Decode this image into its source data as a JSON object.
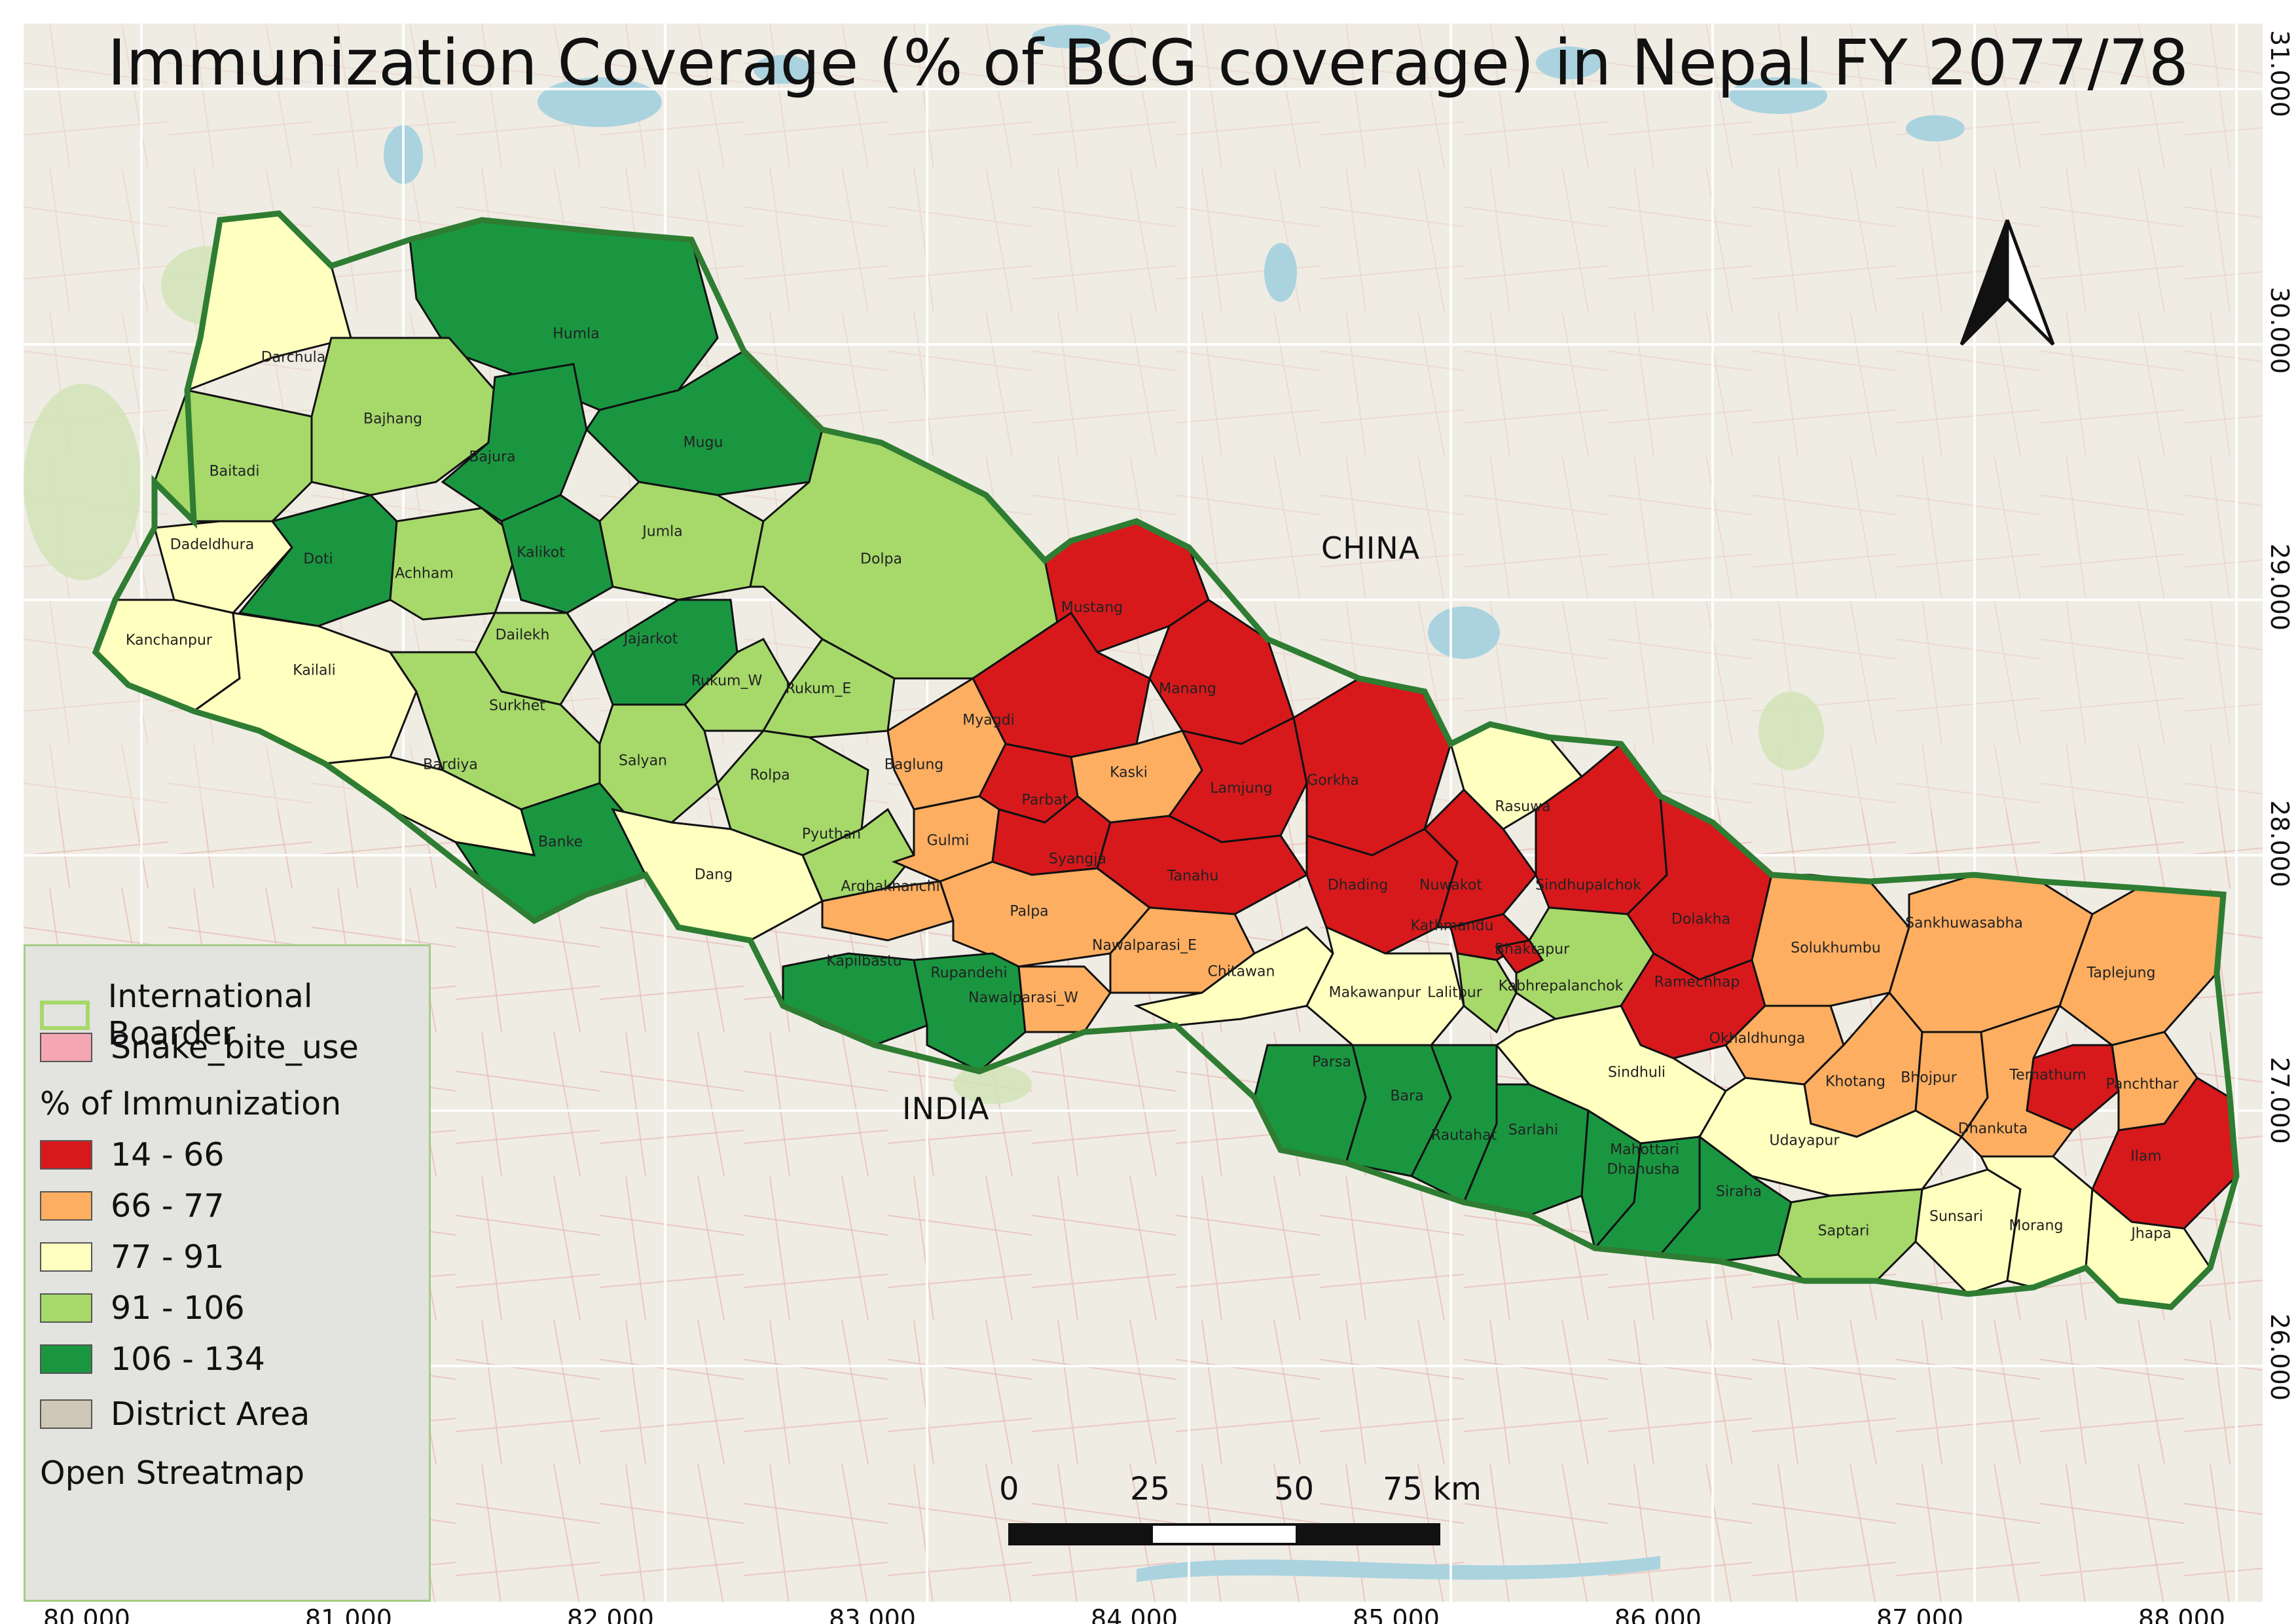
{
  "title": "Immunization Coverage (% of BCG coverage) in Nepal FY 2077/78",
  "legend": {
    "boundary_label": "International Boarder",
    "snake_label": "Snake_bite_use",
    "heading": "% of Immunization",
    "classes": [
      {
        "label": "14 - 66",
        "color": "#d7191c"
      },
      {
        "label": "66 - 77",
        "color": "#fdae61"
      },
      {
        "label": "77 - 91",
        "color": "#ffffc0"
      },
      {
        "label": "91 - 106",
        "color": "#a6d96a"
      },
      {
        "label": "106 - 134",
        "color": "#1a9641"
      }
    ],
    "district_label": "District Area",
    "basemap_label": "Open Streatmap"
  },
  "colors": {
    "boundary": "#2e7d32",
    "boundary_legend": "#a6d96a",
    "snake": "#f4a7b3",
    "district": "#cfc8b8",
    "basemap": "#efece4",
    "water": "#aad3df"
  },
  "countries": {
    "china": "CHINA",
    "india": "INDIA"
  },
  "longitude_labels": [
    "80.000",
    "81.000",
    "82.000",
    "83.000",
    "84.000",
    "85.000",
    "86.000",
    "87.000",
    "88.000"
  ],
  "latitude_labels": [
    "31.000",
    "30.000",
    "29.000",
    "28.000",
    "27.000",
    "26.000"
  ],
  "scale": {
    "ticks": [
      "0",
      "25",
      "50",
      "75 km"
    ]
  },
  "north_arrow": "north-arrow",
  "districts": [
    {
      "name": "Darchula",
      "class": 2
    },
    {
      "name": "Humla",
      "class": 4
    },
    {
      "name": "Bajhang",
      "class": 3
    },
    {
      "name": "Baitadi",
      "class": 3
    },
    {
      "name": "Bajura",
      "class": 4
    },
    {
      "name": "Mugu",
      "class": 4
    },
    {
      "name": "Dadeldhura",
      "class": 2
    },
    {
      "name": "Doti",
      "class": 4
    },
    {
      "name": "Achham",
      "class": 3
    },
    {
      "name": "Kalikot",
      "class": 4
    },
    {
      "name": "Jumla",
      "class": 3
    },
    {
      "name": "Dolpa",
      "class": 3
    },
    {
      "name": "Kanchanpur",
      "class": 2
    },
    {
      "name": "Kailali",
      "class": 2
    },
    {
      "name": "Dailekh",
      "class": 3
    },
    {
      "name": "Jajarkot",
      "class": 4
    },
    {
      "name": "Rukum_W",
      "class": 3
    },
    {
      "name": "Rukum_E",
      "class": 3
    },
    {
      "name": "Surkhet",
      "class": 3
    },
    {
      "name": "Bardiya",
      "class": 2
    },
    {
      "name": "Salyan",
      "class": 3
    },
    {
      "name": "Rolpa",
      "class": 3
    },
    {
      "name": "Banke",
      "class": 4
    },
    {
      "name": "Dang",
      "class": 2
    },
    {
      "name": "Pyuthan",
      "class": 3
    },
    {
      "name": "Mustang",
      "class": 0
    },
    {
      "name": "Manang",
      "class": 0
    },
    {
      "name": "Myagdi",
      "class": 0
    },
    {
      "name": "Baglung",
      "class": 1
    },
    {
      "name": "Kaski",
      "class": 1
    },
    {
      "name": "Lamjung",
      "class": 0
    },
    {
      "name": "Gorkha",
      "class": 0
    },
    {
      "name": "Parbat",
      "class": 0
    },
    {
      "name": "Gulmi",
      "class": 1
    },
    {
      "name": "Syangja",
      "class": 0
    },
    {
      "name": "Tanahu",
      "class": 0
    },
    {
      "name": "Arghakhanchi",
      "class": 1
    },
    {
      "name": "Palpa",
      "class": 1
    },
    {
      "name": "Dhading",
      "class": 0
    },
    {
      "name": "Nuwakot",
      "class": 0
    },
    {
      "name": "Rasuwa",
      "class": 2
    },
    {
      "name": "Sindhupalchok",
      "class": 0
    },
    {
      "name": "Kathmandu",
      "class": 0
    },
    {
      "name": "Dolakha",
      "class": 0
    },
    {
      "name": "Kapilbastu",
      "class": 4
    },
    {
      "name": "Rupandehi",
      "class": 4
    },
    {
      "name": "Nawalparasi_W",
      "class": 1
    },
    {
      "name": "Nawalparasi_E",
      "class": 1
    },
    {
      "name": "Chitawan",
      "class": 2
    },
    {
      "name": "Makawanpur",
      "class": 2
    },
    {
      "name": "Lalitpur",
      "class": 3
    },
    {
      "name": "Bhaktapur",
      "class": 0
    },
    {
      "name": "Kabhrepalanchok",
      "class": 3
    },
    {
      "name": "Ramechhap",
      "class": 0
    },
    {
      "name": "Solukhumbu",
      "class": 1
    },
    {
      "name": "Sankhuwasabha",
      "class": 1
    },
    {
      "name": "Taplejung",
      "class": 1
    },
    {
      "name": "Okhaldhunga",
      "class": 1
    },
    {
      "name": "Khotang",
      "class": 1
    },
    {
      "name": "Bhojpur",
      "class": 1
    },
    {
      "name": "Terhathum",
      "class": 0
    },
    {
      "name": "Panchthar",
      "class": 1
    },
    {
      "name": "Sindhuli",
      "class": 2
    },
    {
      "name": "Parsa",
      "class": 4
    },
    {
      "name": "Bara",
      "class": 4
    },
    {
      "name": "Rautahat",
      "class": 4
    },
    {
      "name": "Sarlahi",
      "class": 4
    },
    {
      "name": "Mahottari",
      "class": 4
    },
    {
      "name": "Dhanusha",
      "class": 4
    },
    {
      "name": "Siraha",
      "class": 4
    },
    {
      "name": "Udayapur",
      "class": 2
    },
    {
      "name": "Dhankuta",
      "class": 1
    },
    {
      "name": "Ilam",
      "class": 0
    },
    {
      "name": "Saptari",
      "class": 3
    },
    {
      "name": "Sunsari",
      "class": 2
    },
    {
      "name": "Morang",
      "class": 2
    },
    {
      "name": "Jhapa",
      "class": 2
    }
  ]
}
